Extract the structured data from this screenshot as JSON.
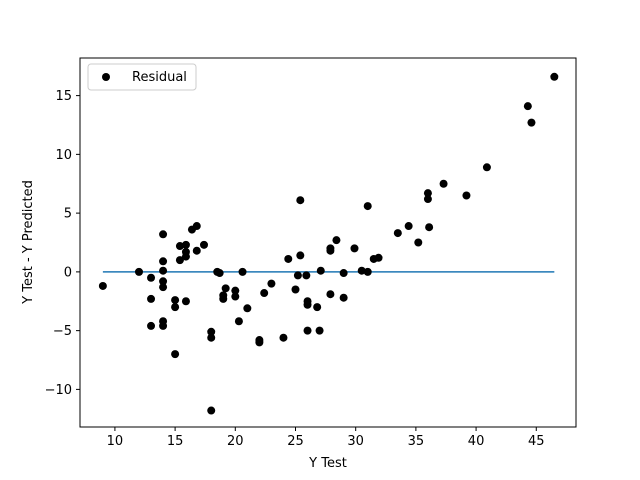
{
  "chart_data": {
    "type": "scatter",
    "title": "",
    "xlabel": "Y Test",
    "ylabel": "Y Test - Y Predicted",
    "xlim": [
      7.1,
      48.3
    ],
    "ylim": [
      -13.2,
      18.2
    ],
    "xticks": [
      10,
      15,
      20,
      25,
      30,
      35,
      40,
      45
    ],
    "yticks": [
      -10,
      -5,
      0,
      5,
      10,
      15
    ],
    "legend": {
      "placement": "top-left",
      "entries": [
        "Residual"
      ]
    },
    "grid": false,
    "colors": {
      "points": "#000000",
      "zero_line": "#1f77b4"
    },
    "zero_line": {
      "x": [
        9.0,
        46.5
      ],
      "y": [
        0,
        0
      ]
    },
    "series": [
      {
        "name": "Residual",
        "points": [
          [
            9.0,
            -1.2
          ],
          [
            12.0,
            0.0
          ],
          [
            13.0,
            -0.5
          ],
          [
            13.0,
            -2.3
          ],
          [
            13.0,
            -4.6
          ],
          [
            14.0,
            3.2
          ],
          [
            14.0,
            0.9
          ],
          [
            14.0,
            0.1
          ],
          [
            14.0,
            -0.8
          ],
          [
            14.0,
            -1.3
          ],
          [
            14.0,
            -4.2
          ],
          [
            14.0,
            -4.6
          ],
          [
            15.0,
            -2.4
          ],
          [
            15.0,
            -3.0
          ],
          [
            15.0,
            -7.0
          ],
          [
            15.4,
            2.2
          ],
          [
            15.4,
            1.0
          ],
          [
            15.9,
            2.3
          ],
          [
            15.9,
            1.7
          ],
          [
            15.9,
            1.3
          ],
          [
            15.9,
            -2.5
          ],
          [
            16.4,
            3.6
          ],
          [
            16.8,
            3.9
          ],
          [
            16.8,
            1.8
          ],
          [
            17.4,
            2.3
          ],
          [
            18.0,
            -5.1
          ],
          [
            18.0,
            -5.6
          ],
          [
            18.0,
            -11.8
          ],
          [
            18.5,
            0.0
          ],
          [
            18.7,
            -0.1
          ],
          [
            19.0,
            -2.0
          ],
          [
            19.0,
            -2.3
          ],
          [
            19.2,
            -1.4
          ],
          [
            20.0,
            -1.6
          ],
          [
            20.0,
            -2.1
          ],
          [
            20.3,
            -4.2
          ],
          [
            20.6,
            0.0
          ],
          [
            21.0,
            -3.1
          ],
          [
            22.0,
            -5.8
          ],
          [
            22.0,
            -6.0
          ],
          [
            22.4,
            -1.8
          ],
          [
            23.0,
            -1.0
          ],
          [
            24.0,
            -5.6
          ],
          [
            24.4,
            1.1
          ],
          [
            25.0,
            -1.5
          ],
          [
            25.2,
            -0.3
          ],
          [
            25.4,
            6.1
          ],
          [
            25.4,
            1.4
          ],
          [
            25.9,
            -0.3
          ],
          [
            26.0,
            -2.5
          ],
          [
            26.0,
            -2.8
          ],
          [
            26.0,
            -5.0
          ],
          [
            26.8,
            -3.0
          ],
          [
            27.0,
            -5.0
          ],
          [
            27.1,
            0.1
          ],
          [
            27.9,
            1.8
          ],
          [
            27.9,
            2.0
          ],
          [
            27.9,
            -1.9
          ],
          [
            28.4,
            2.7
          ],
          [
            29.0,
            -2.2
          ],
          [
            29.0,
            -0.1
          ],
          [
            29.9,
            2.0
          ],
          [
            30.5,
            0.1
          ],
          [
            31.0,
            0.0
          ],
          [
            31.0,
            5.6
          ],
          [
            31.5,
            1.1
          ],
          [
            31.9,
            1.2
          ],
          [
            33.5,
            3.3
          ],
          [
            34.4,
            3.9
          ],
          [
            35.2,
            2.5
          ],
          [
            36.0,
            6.2
          ],
          [
            36.0,
            6.7
          ],
          [
            36.1,
            3.8
          ],
          [
            37.3,
            7.5
          ],
          [
            39.2,
            6.5
          ],
          [
            40.9,
            8.9
          ],
          [
            44.3,
            14.1
          ],
          [
            44.6,
            12.7
          ],
          [
            46.5,
            16.6
          ]
        ]
      }
    ]
  }
}
